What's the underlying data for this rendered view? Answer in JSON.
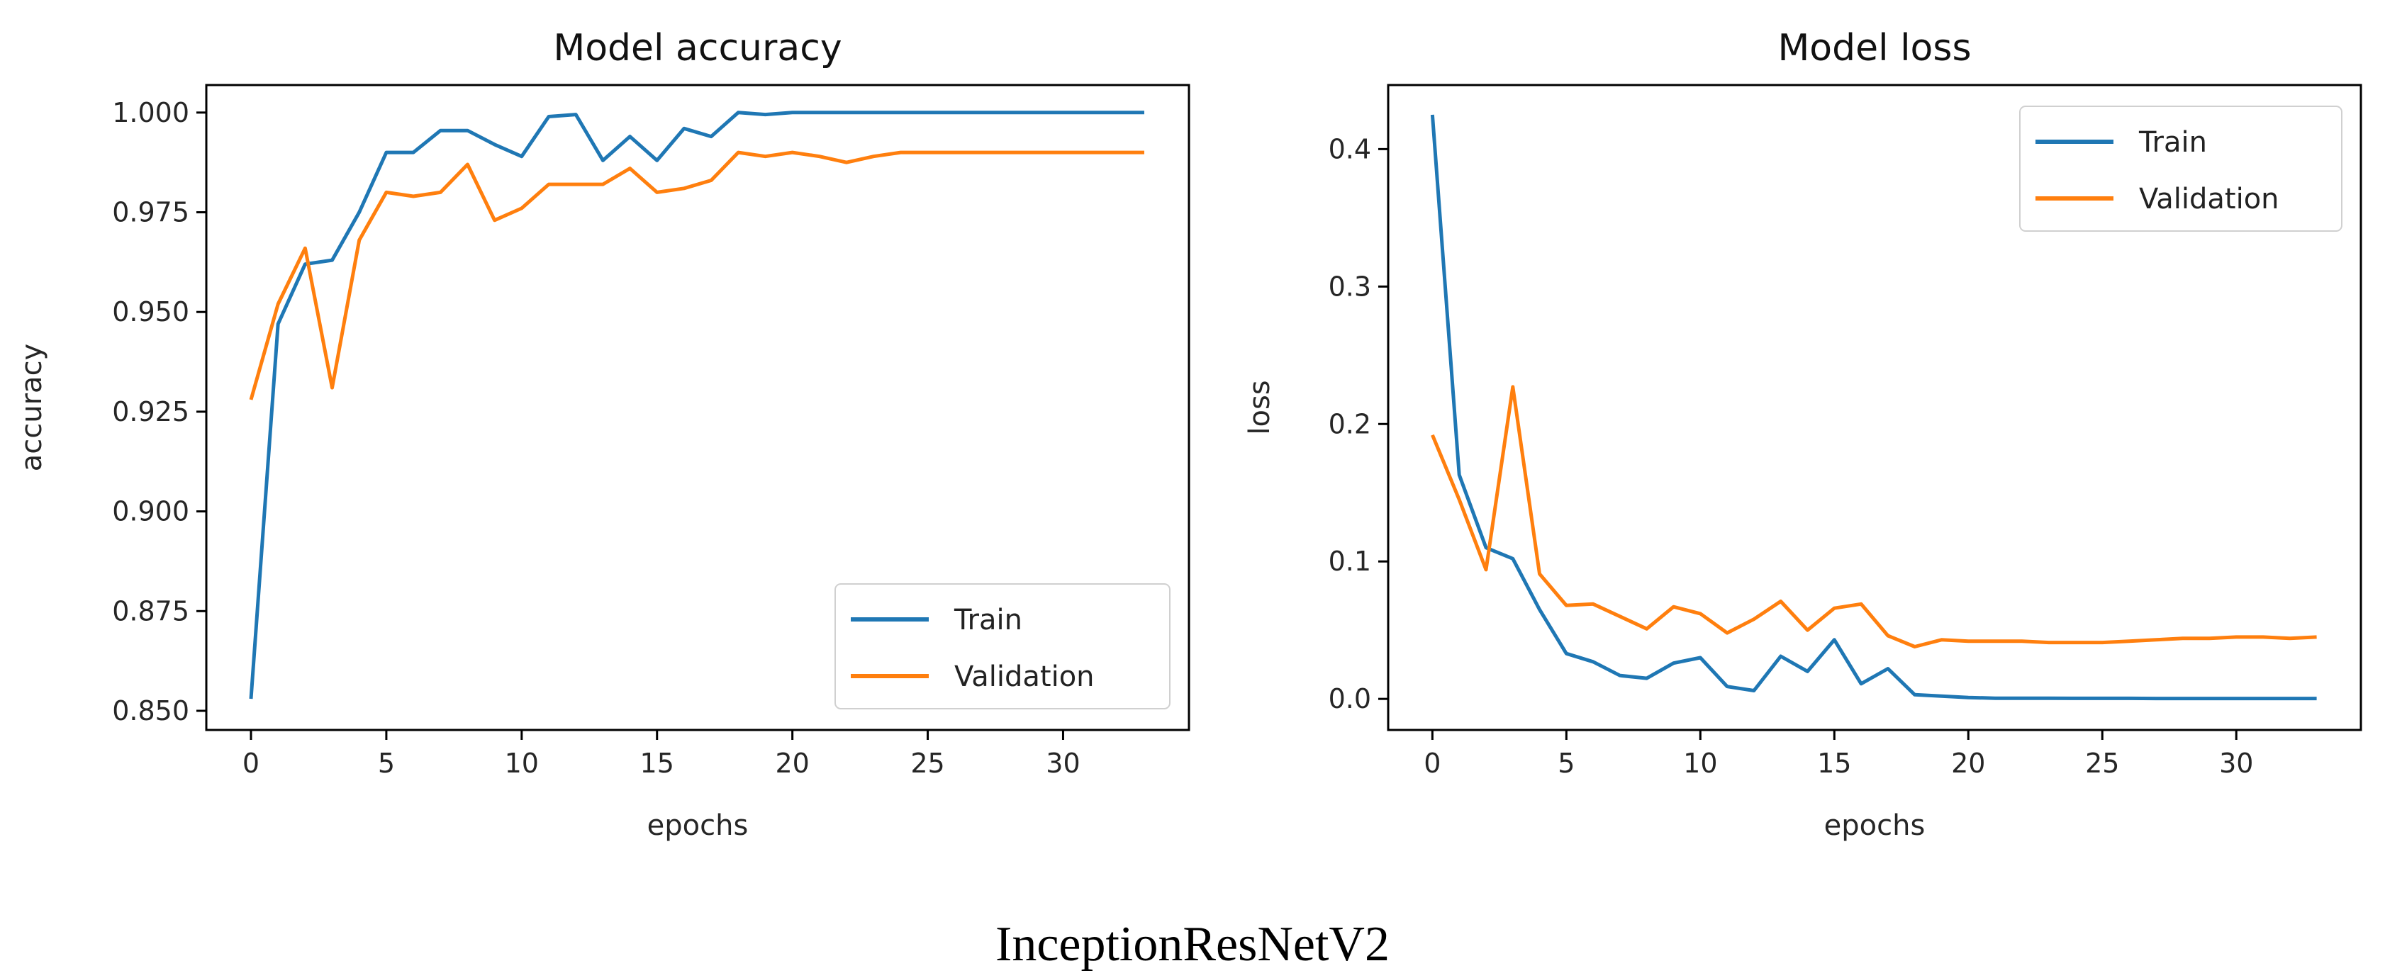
{
  "caption": "InceptionResNetV2",
  "colors": {
    "train": "#1f77b4",
    "validation": "#ff7f0e"
  },
  "chart_data": [
    {
      "type": "line",
      "title": "Model accuracy",
      "xlabel": "epochs",
      "ylabel": "accuracy",
      "xlim": [
        -1.65,
        34.65
      ],
      "ylim": [
        0.8452,
        1.0069
      ],
      "xticks": [
        0,
        5,
        10,
        15,
        20,
        25,
        30
      ],
      "xtick_labels": [
        "0",
        "5",
        "10",
        "15",
        "20",
        "25",
        "30"
      ],
      "yticks": [
        0.85,
        0.875,
        0.9,
        0.925,
        0.95,
        0.975,
        1.0
      ],
      "ytick_labels": [
        "0.850",
        "0.875",
        "0.900",
        "0.925",
        "0.950",
        "0.975",
        "1.000"
      ],
      "legend": "lower-right",
      "grid": false,
      "x": [
        0,
        1,
        2,
        3,
        4,
        5,
        6,
        7,
        8,
        9,
        10,
        11,
        12,
        13,
        14,
        15,
        16,
        17,
        18,
        19,
        20,
        21,
        22,
        23,
        24,
        25,
        26,
        27,
        28,
        29,
        30,
        31,
        32,
        33
      ],
      "series": [
        {
          "name": "Train",
          "values": [
            0.853,
            0.947,
            0.962,
            0.963,
            0.975,
            0.99,
            0.99,
            0.9955,
            0.9955,
            0.992,
            0.989,
            0.999,
            0.9995,
            0.988,
            0.994,
            0.988,
            0.996,
            0.994,
            1.0,
            0.9995,
            1.0,
            1.0,
            1.0,
            1.0,
            1.0,
            1.0,
            1.0,
            1.0,
            1.0,
            1.0,
            1.0,
            1.0,
            1.0,
            1.0
          ]
        },
        {
          "name": "Validation",
          "values": [
            0.928,
            0.952,
            0.966,
            0.931,
            0.968,
            0.98,
            0.979,
            0.98,
            0.987,
            0.973,
            0.976,
            0.982,
            0.982,
            0.982,
            0.986,
            0.98,
            0.981,
            0.983,
            0.99,
            0.989,
            0.99,
            0.989,
            0.9875,
            0.989,
            0.99,
            0.99,
            0.99,
            0.99,
            0.99,
            0.99,
            0.99,
            0.99,
            0.99,
            0.99
          ]
        }
      ]
    },
    {
      "type": "line",
      "title": "Model loss",
      "xlabel": "epochs",
      "ylabel": "loss",
      "xlim": [
        -1.65,
        34.65
      ],
      "ylim": [
        -0.0226,
        0.4466
      ],
      "xticks": [
        0,
        5,
        10,
        15,
        20,
        25,
        30
      ],
      "xtick_labels": [
        "0",
        "5",
        "10",
        "15",
        "20",
        "25",
        "30"
      ],
      "yticks": [
        0.0,
        0.1,
        0.2,
        0.3,
        0.4
      ],
      "ytick_labels": [
        "0.0",
        "0.1",
        "0.2",
        "0.3",
        "0.4"
      ],
      "legend": "upper-right",
      "grid": false,
      "x": [
        0,
        1,
        2,
        3,
        4,
        5,
        6,
        7,
        8,
        9,
        10,
        11,
        12,
        13,
        14,
        15,
        16,
        17,
        18,
        19,
        20,
        21,
        22,
        23,
        24,
        25,
        26,
        27,
        28,
        29,
        30,
        31,
        32,
        33
      ],
      "series": [
        {
          "name": "Train",
          "values": [
            0.425,
            0.163,
            0.11,
            0.102,
            0.065,
            0.033,
            0.027,
            0.017,
            0.015,
            0.026,
            0.03,
            0.009,
            0.006,
            0.031,
            0.02,
            0.043,
            0.011,
            0.022,
            0.003,
            0.002,
            0.001,
            0.0005,
            0.0005,
            0.0005,
            0.0004,
            0.0004,
            0.0004,
            0.0003,
            0.0003,
            0.0003,
            0.0003,
            0.0003,
            0.0003,
            0.0003
          ]
        },
        {
          "name": "Validation",
          "values": [
            0.192,
            0.145,
            0.094,
            0.227,
            0.091,
            0.068,
            0.069,
            0.06,
            0.051,
            0.067,
            0.062,
            0.048,
            0.058,
            0.071,
            0.05,
            0.066,
            0.069,
            0.046,
            0.038,
            0.043,
            0.042,
            0.042,
            0.042,
            0.041,
            0.041,
            0.041,
            0.042,
            0.043,
            0.044,
            0.044,
            0.045,
            0.045,
            0.044,
            0.045
          ]
        }
      ]
    }
  ]
}
